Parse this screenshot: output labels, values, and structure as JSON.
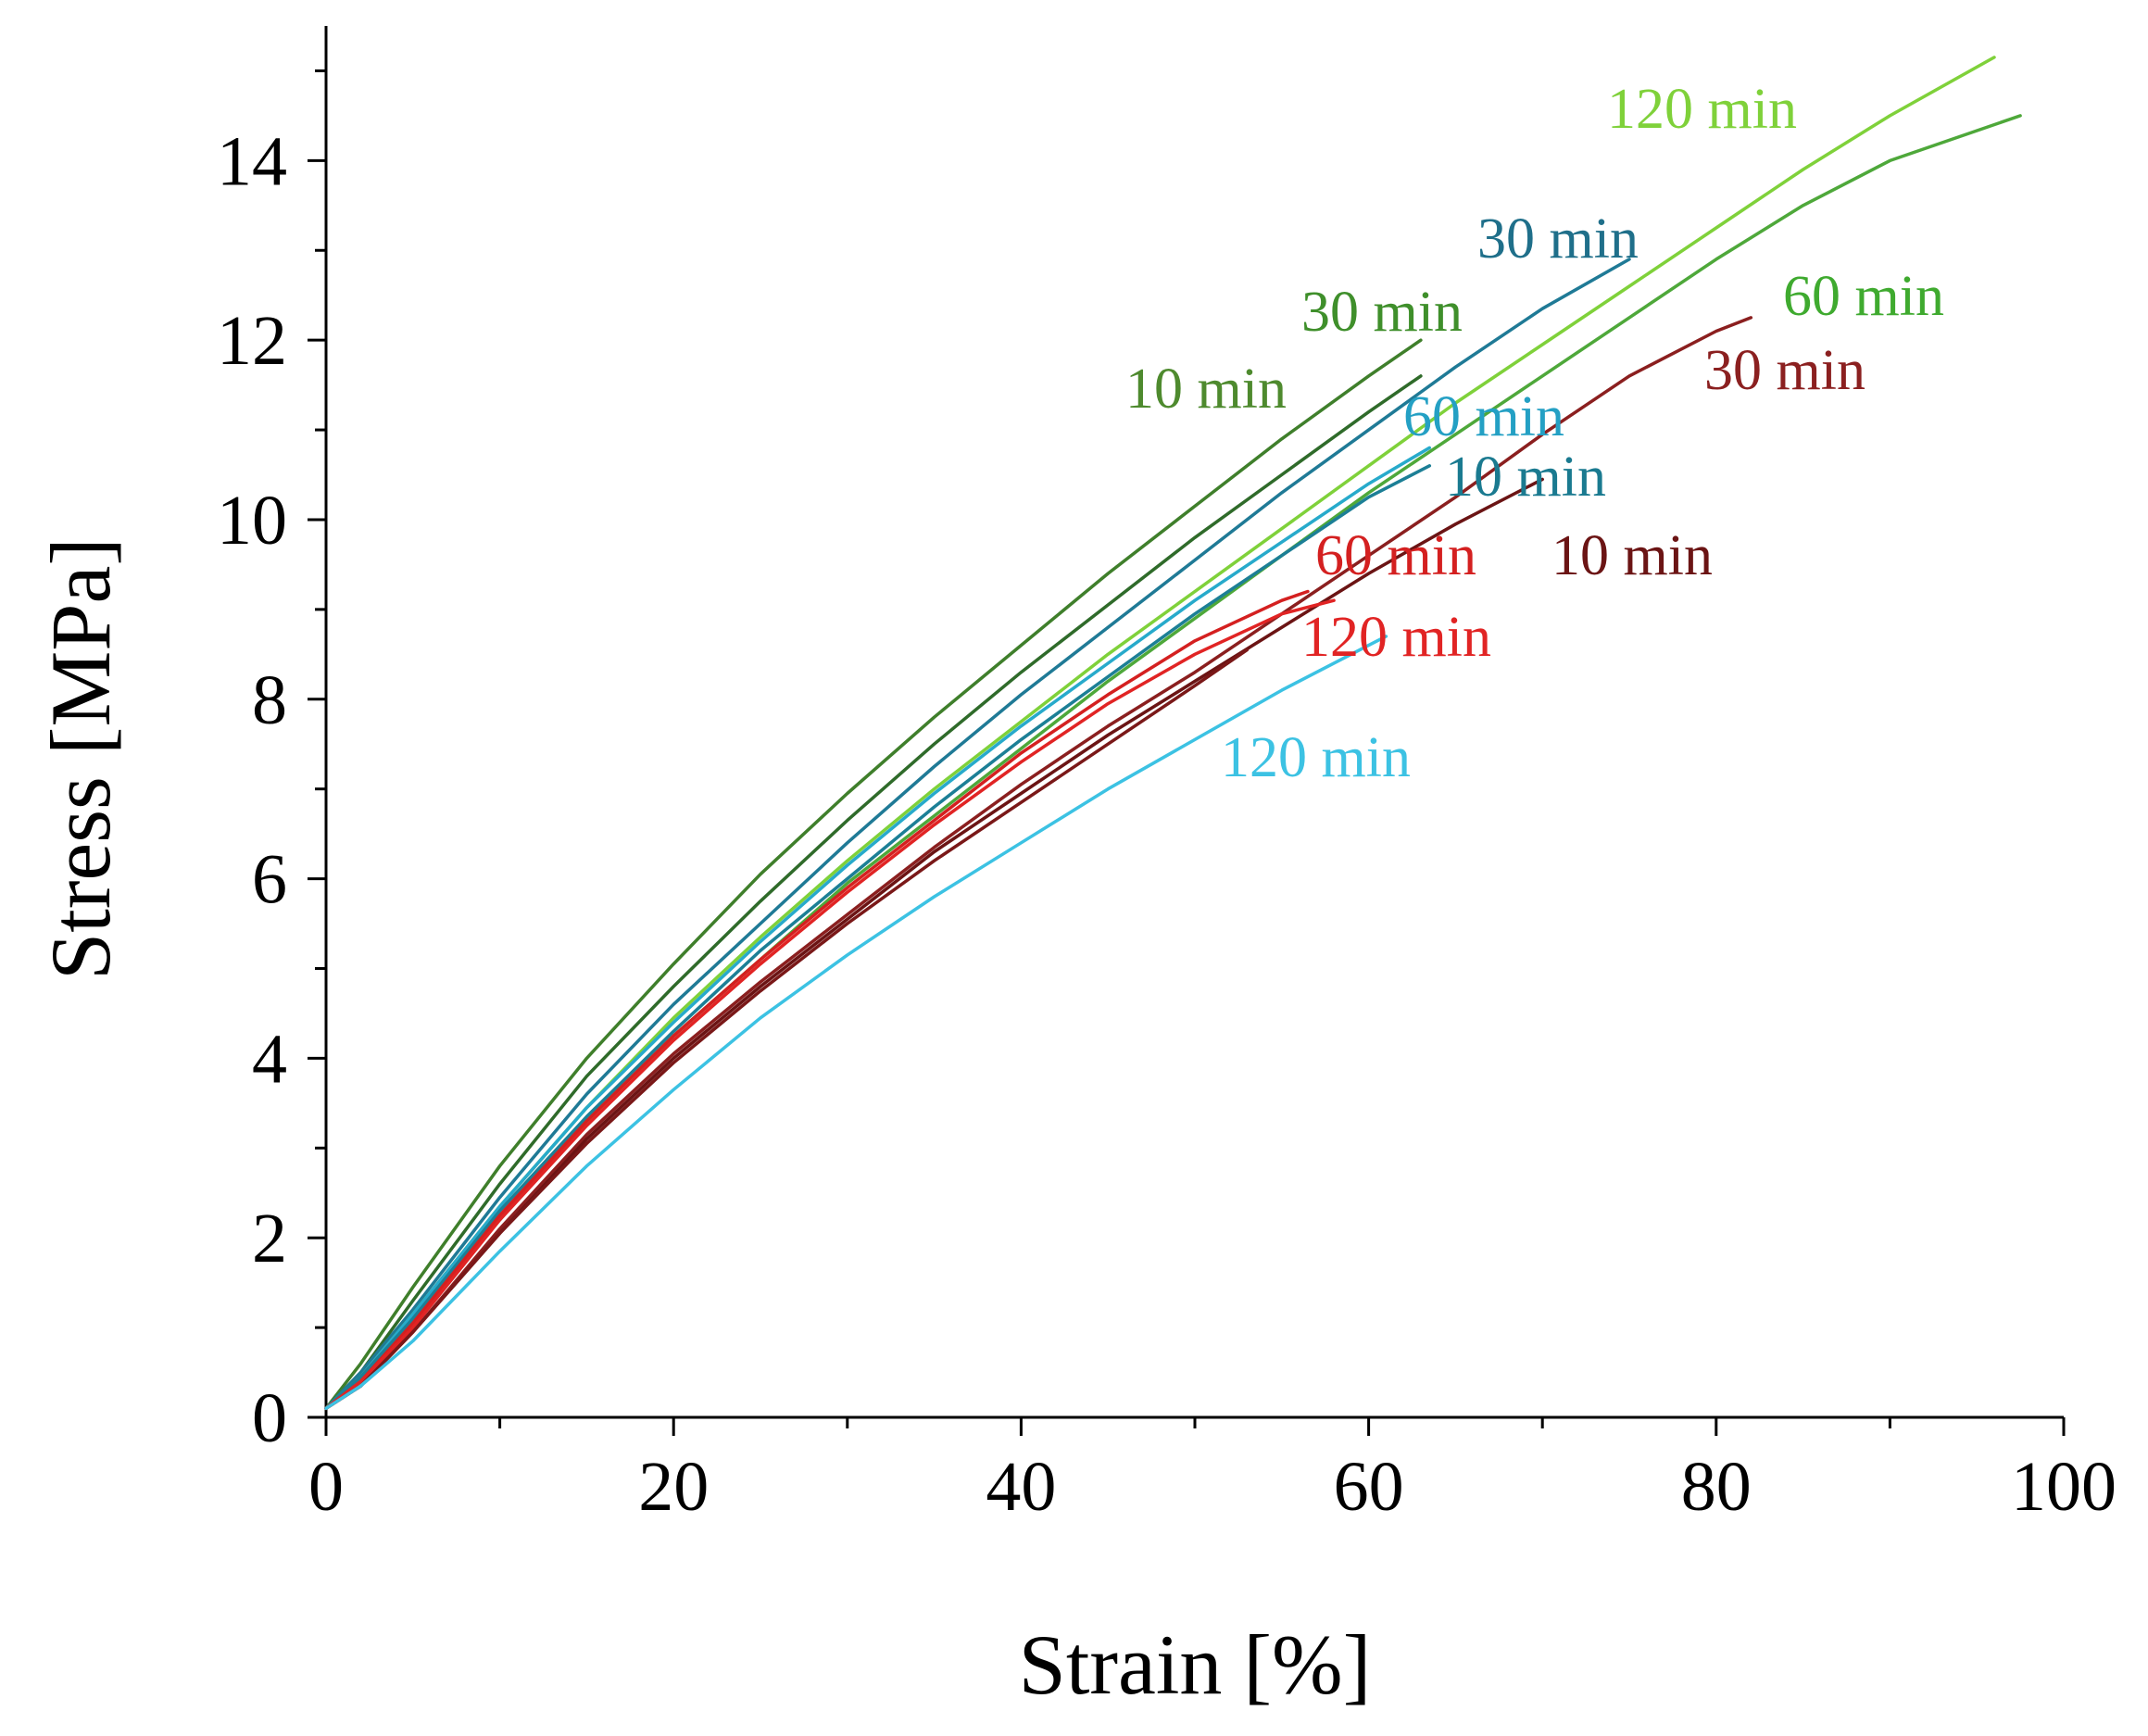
{
  "chart_data": {
    "type": "line",
    "title": "",
    "xlabel": "Strain [%]",
    "ylabel": "Stress [MPa]",
    "xlim": [
      0,
      100
    ],
    "ylim": [
      0,
      15.5
    ],
    "xticks": [
      0,
      20,
      40,
      60,
      80,
      100
    ],
    "yticks": [
      0,
      2,
      4,
      6,
      8,
      10,
      12,
      14
    ],
    "grid": false,
    "legend": "inline curve labels",
    "series": [
      {
        "name": "10 min",
        "group": "dark green",
        "color": "#2f6b2a",
        "label": "10 min",
        "label_color": "#4e8a2e",
        "x": [
          0,
          2,
          5,
          10,
          15,
          20,
          25,
          30,
          35,
          40,
          45,
          50,
          55,
          60,
          63
        ],
        "y": [
          0.1,
          0.5,
          1.3,
          2.6,
          3.8,
          4.8,
          5.75,
          6.65,
          7.5,
          8.3,
          9.05,
          9.8,
          10.5,
          11.2,
          11.6
        ]
      },
      {
        "name": "30 min",
        "group": "dark green",
        "color": "#3f7f2b",
        "label": "30 min",
        "label_color": "#3f8f2b",
        "x": [
          0,
          2,
          5,
          10,
          15,
          20,
          25,
          30,
          35,
          40,
          45,
          50,
          55,
          60,
          63
        ],
        "y": [
          0.1,
          0.6,
          1.45,
          2.8,
          4.0,
          5.05,
          6.05,
          6.95,
          7.8,
          8.6,
          9.4,
          10.15,
          10.9,
          11.6,
          12.0
        ]
      },
      {
        "name": "30 min",
        "group": "teal",
        "color": "#1f7a96",
        "label": "30 min",
        "label_color": "#1f6f8a",
        "x": [
          0,
          2,
          5,
          10,
          15,
          20,
          25,
          30,
          35,
          40,
          45,
          50,
          55,
          60,
          65,
          70,
          75
        ],
        "y": [
          0.1,
          0.5,
          1.2,
          2.45,
          3.6,
          4.6,
          5.5,
          6.4,
          7.25,
          8.05,
          8.8,
          9.55,
          10.3,
          11.0,
          11.7,
          12.35,
          12.9
        ]
      },
      {
        "name": "120 min",
        "group": "light green",
        "color": "#7fd13a",
        "label": "120 min",
        "label_color": "#7fd13a",
        "x": [
          0,
          2,
          5,
          10,
          15,
          20,
          25,
          30,
          35,
          40,
          45,
          50,
          55,
          60,
          65,
          70,
          75,
          80,
          85,
          90,
          96
        ],
        "y": [
          0.1,
          0.45,
          1.15,
          2.35,
          3.45,
          4.45,
          5.35,
          6.2,
          7.0,
          7.75,
          8.5,
          9.2,
          9.9,
          10.6,
          11.3,
          11.95,
          12.6,
          13.25,
          13.9,
          14.5,
          15.15
        ]
      },
      {
        "name": "60 min",
        "group": "mid green",
        "color": "#4ea83a",
        "label": "60 min",
        "label_color": "#3faa2f",
        "x": [
          0,
          2,
          5,
          10,
          15,
          20,
          25,
          30,
          35,
          40,
          45,
          50,
          55,
          60,
          65,
          70,
          75,
          80,
          85,
          90,
          97.5
        ],
        "y": [
          0.1,
          0.4,
          1.05,
          2.2,
          3.3,
          4.25,
          5.1,
          5.95,
          6.7,
          7.45,
          8.2,
          8.9,
          9.6,
          10.3,
          10.95,
          11.6,
          12.25,
          12.9,
          13.5,
          14.0,
          14.5
        ]
      },
      {
        "name": "60 min",
        "group": "cyan",
        "color": "#27aacb",
        "label": "60 min",
        "label_color": "#24a0c4",
        "x": [
          0,
          2,
          5,
          10,
          15,
          20,
          25,
          30,
          35,
          40,
          45,
          50,
          55,
          60,
          63.5
        ],
        "y": [
          0.1,
          0.45,
          1.15,
          2.35,
          3.45,
          4.4,
          5.3,
          6.15,
          6.95,
          7.7,
          8.4,
          9.1,
          9.75,
          10.4,
          10.8
        ]
      },
      {
        "name": "10 min",
        "group": "teal",
        "color": "#1c7f96",
        "label": "10 min",
        "label_color": "#1a7a90",
        "x": [
          0,
          2,
          5,
          10,
          15,
          20,
          25,
          30,
          35,
          40,
          45,
          50,
          55,
          60,
          63.5
        ],
        "y": [
          0.1,
          0.45,
          1.1,
          2.3,
          3.35,
          4.3,
          5.2,
          6.0,
          6.8,
          7.55,
          8.25,
          8.95,
          9.6,
          10.25,
          10.6
        ]
      },
      {
        "name": "30 min",
        "group": "dark red",
        "color": "#8b1f1f",
        "label": "30 min",
        "label_color": "#8b2020",
        "x": [
          0,
          2,
          5,
          10,
          15,
          20,
          25,
          30,
          35,
          40,
          45,
          50,
          55,
          60,
          65,
          70,
          75,
          80,
          82
        ],
        "y": [
          0.1,
          0.35,
          0.95,
          2.1,
          3.15,
          4.05,
          4.85,
          5.6,
          6.35,
          7.05,
          7.7,
          8.3,
          8.95,
          9.6,
          10.25,
          10.95,
          11.6,
          12.1,
          12.25
        ]
      },
      {
        "name": "10 min",
        "group": "dark red",
        "color": "#6b1414",
        "label": "10 min",
        "label_color": "#6b1414",
        "x": [
          0,
          2,
          5,
          10,
          15,
          20,
          25,
          30,
          35,
          40,
          45,
          50,
          55,
          60,
          65,
          70
        ],
        "y": [
          0.1,
          0.35,
          0.95,
          2.05,
          3.1,
          4.0,
          4.8,
          5.55,
          6.3,
          6.95,
          7.6,
          8.2,
          8.8,
          9.4,
          9.95,
          10.45
        ]
      },
      {
        "name": "60 min",
        "group": "red",
        "color": "#d42020",
        "label": "60 min",
        "label_color": "#d42020",
        "x": [
          0,
          2,
          5,
          10,
          15,
          20,
          25,
          30,
          35,
          40,
          45,
          50,
          55,
          56.5
        ],
        "y": [
          0.1,
          0.4,
          1.05,
          2.25,
          3.3,
          4.25,
          5.1,
          5.9,
          6.65,
          7.4,
          8.05,
          8.65,
          9.1,
          9.2
        ]
      },
      {
        "name": "120 min",
        "group": "red",
        "color": "#e12424",
        "label": "120 min",
        "label_color": "#e12424",
        "x": [
          0,
          2,
          5,
          10,
          15,
          20,
          25,
          30,
          35,
          40,
          45,
          50,
          55,
          58
        ],
        "y": [
          0.1,
          0.4,
          1.0,
          2.2,
          3.25,
          4.2,
          5.05,
          5.85,
          6.6,
          7.3,
          7.95,
          8.5,
          8.95,
          9.1
        ]
      },
      {
        "name": "120 min",
        "group": "dark red",
        "color": "#7a1818",
        "label": "",
        "label_color": "#7a1818",
        "x": [
          0,
          2,
          5,
          10,
          15,
          20,
          25,
          30,
          35,
          40,
          45,
          50,
          53
        ],
        "y": [
          0.1,
          0.35,
          0.95,
          2.05,
          3.05,
          3.95,
          4.75,
          5.5,
          6.2,
          6.85,
          7.5,
          8.15,
          8.55
        ]
      },
      {
        "name": "120 min",
        "group": "cyan",
        "color": "#3cc2e3",
        "label": "120 min",
        "label_color": "#3cc2e3",
        "x": [
          0,
          2,
          5,
          10,
          15,
          20,
          25,
          30,
          35,
          40,
          45,
          50,
          55,
          60,
          61
        ],
        "y": [
          0.1,
          0.35,
          0.85,
          1.85,
          2.8,
          3.65,
          4.45,
          5.15,
          5.8,
          6.4,
          7.0,
          7.55,
          8.1,
          8.6,
          8.7
        ]
      }
    ]
  }
}
